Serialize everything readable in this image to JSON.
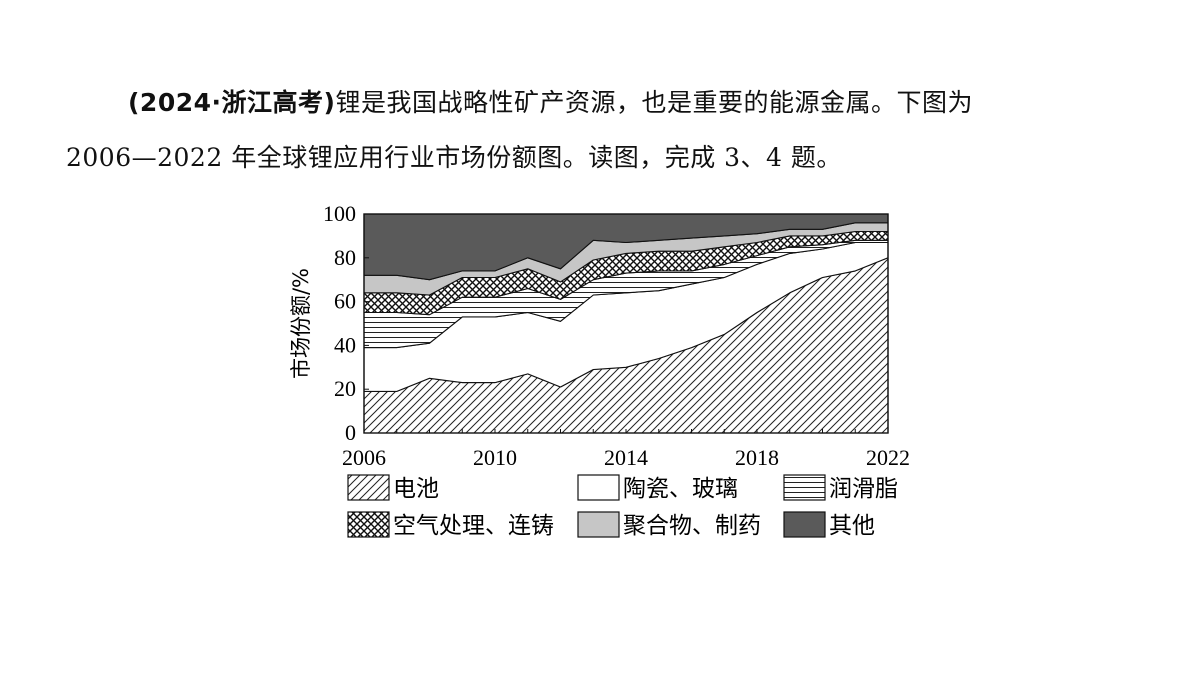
{
  "question": {
    "source": "(2024·浙江高考)",
    "line1_rest": "锂是我国战略性矿产资源，也是重要的能源金属。下图为",
    "line2": "2006—2022 年全球锂应用行业市场份额图。读图，完成 3、4 题。"
  },
  "chart_data": {
    "type": "area",
    "stacked": true,
    "title": "",
    "xlabel": "",
    "ylabel": "市场份额/%",
    "x": [
      2006,
      2007,
      2008,
      2009,
      2010,
      2011,
      2012,
      2013,
      2014,
      2015,
      2016,
      2017,
      2018,
      2019,
      2020,
      2021,
      2022
    ],
    "xticks": [
      "2006",
      "2010",
      "2014",
      "2018",
      "2022"
    ],
    "yticks": [
      "0",
      "20",
      "40",
      "60",
      "80",
      "100"
    ],
    "xlim": [
      2006,
      2022
    ],
    "ylim": [
      0,
      100
    ],
    "grid": false,
    "legend_position": "bottom",
    "series": [
      {
        "name": "电池",
        "pattern": "diagonal-hatch",
        "values": [
          19,
          19,
          25,
          23,
          23,
          27,
          21,
          29,
          30,
          34,
          39,
          45,
          55,
          64,
          71,
          74,
          80
        ]
      },
      {
        "name": "陶瓷、玻璃",
        "pattern": "white",
        "values": [
          20,
          20,
          16,
          30,
          30,
          28,
          30,
          34,
          34,
          31,
          29,
          26,
          22,
          18,
          13,
          13,
          7
        ]
      },
      {
        "name": "润滑脂",
        "pattern": "horizontal-lines",
        "values": [
          16,
          16,
          13,
          9,
          9,
          11,
          10,
          7,
          9,
          9,
          6,
          6,
          4,
          3,
          2,
          1,
          1
        ]
      },
      {
        "name": "空气处理、连铸",
        "pattern": "cross-hatch",
        "values": [
          9,
          9,
          9,
          9,
          9,
          9,
          8,
          9,
          9,
          9,
          9,
          8,
          6,
          5,
          4,
          4,
          4
        ]
      },
      {
        "name": "聚合物、制药",
        "pattern": "light-gray",
        "values": [
          8,
          8,
          7,
          3,
          3,
          5,
          6,
          9,
          5,
          5,
          6,
          5,
          4,
          3,
          3,
          4,
          4
        ]
      },
      {
        "name": "其他",
        "pattern": "dark-gray",
        "values": [
          28,
          28,
          30,
          26,
          26,
          20,
          25,
          12,
          13,
          12,
          11,
          10,
          9,
          7,
          7,
          4,
          4
        ]
      }
    ]
  }
}
